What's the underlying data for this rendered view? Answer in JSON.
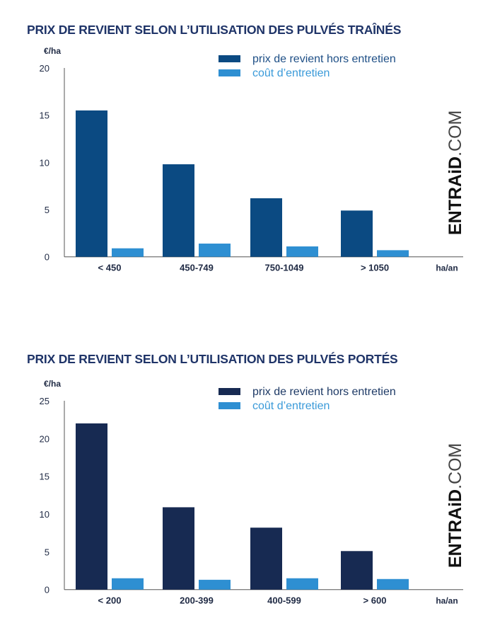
{
  "chart_data": [
    {
      "type": "bar",
      "title": "PRIX DE REVIENT SELON L’UTILISATION DES PULVÉS TRAÎNÉS",
      "ylabel": "€/ha",
      "xlabel": "ha/an",
      "ylim": [
        0,
        20
      ],
      "yticks": [
        0,
        5,
        10,
        15,
        20
      ],
      "grid": false,
      "legend_position": "top-right",
      "categories": [
        "< 450",
        "450-749",
        "750-1049",
        "> 1050"
      ],
      "series": [
        {
          "name": "prix de revient hors entretien",
          "color": "#0b4a82",
          "values": [
            15.5,
            9.8,
            6.2,
            4.9
          ]
        },
        {
          "name": "coût d’entretien",
          "color": "#2e8fd2",
          "values": [
            0.9,
            1.4,
            1.1,
            0.7
          ]
        }
      ],
      "legend_text_colors": [
        "#1e4f86",
        "#3a9ad9"
      ],
      "watermark": "ENTRAiD.COM"
    },
    {
      "type": "bar",
      "title": "PRIX DE REVIENT SELON L’UTILISATION DES PULVÉS PORTÉS",
      "ylabel": "€/ha",
      "xlabel": "ha/an",
      "ylim": [
        0,
        25
      ],
      "yticks": [
        0,
        5,
        10,
        15,
        20,
        25
      ],
      "grid": false,
      "legend_position": "top-right",
      "categories": [
        "< 200",
        "200-399",
        "400-599",
        "> 600"
      ],
      "series": [
        {
          "name": "prix de revient hors entretien",
          "color": "#172a52",
          "values": [
            22,
            10.9,
            8.2,
            5.1
          ]
        },
        {
          "name": "coût d’entretien",
          "color": "#2e8fd2",
          "values": [
            1.5,
            1.3,
            1.5,
            1.4
          ]
        }
      ],
      "legend_text_colors": [
        "#1e3a66",
        "#3a9ad9"
      ],
      "watermark": "ENTRAiD.COM"
    }
  ]
}
